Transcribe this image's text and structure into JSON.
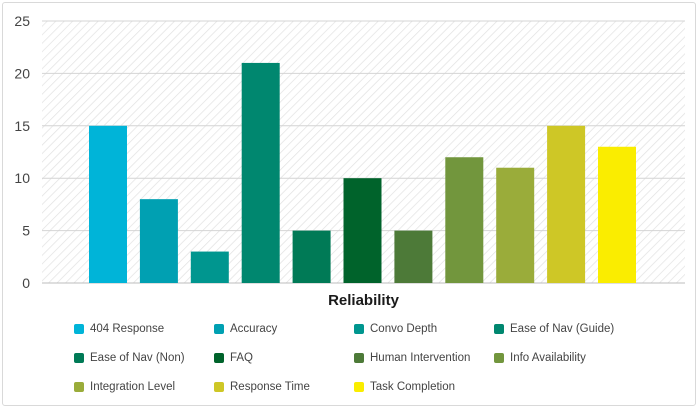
{
  "chart_data": {
    "type": "bar",
    "xlabel": "Reliability",
    "ylim": [
      0,
      25
    ],
    "yticks": [
      0,
      5,
      10,
      15,
      20,
      25
    ],
    "grid": true,
    "legend_placement": "bottom",
    "series": [
      {
        "name": "404 Response",
        "value": 15,
        "color": "#00B4D8"
      },
      {
        "name": "Accuracy",
        "value": 8,
        "color": "#00A0B2"
      },
      {
        "name": "Convo Depth",
        "value": 3,
        "color": "#00968F"
      },
      {
        "name": "Ease of Nav (Guide)",
        "value": 21,
        "color": "#00876F"
      },
      {
        "name": "Ease of Nav (Non)",
        "value": 5,
        "color": "#007A56"
      },
      {
        "name": "FAQ",
        "value": 10,
        "color": "#00632B"
      },
      {
        "name": "Human Intervention",
        "value": 5,
        "color": "#4D7A38"
      },
      {
        "name": "Info Availability",
        "value": 12,
        "color": "#72963D"
      },
      {
        "name": "Integration Level",
        "value": 11,
        "color": "#9AAC3A"
      },
      {
        "name": "Response Time",
        "value": 15,
        "color": "#CEC726"
      },
      {
        "name": "Task Completion",
        "value": 13,
        "color": "#FAED00"
      }
    ]
  }
}
